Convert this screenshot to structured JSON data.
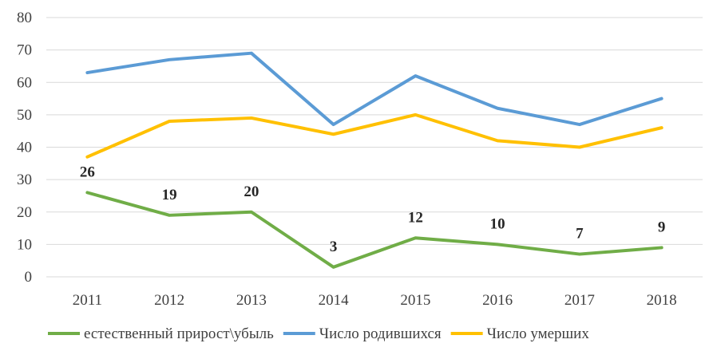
{
  "chart_data": {
    "type": "line",
    "categories": [
      "2011",
      "2012",
      "2013",
      "2014",
      "2015",
      "2016",
      "2017",
      "2018"
    ],
    "ylim": [
      0,
      80
    ],
    "yticks": [
      0,
      10,
      20,
      30,
      40,
      50,
      60,
      70,
      80
    ],
    "grid": true,
    "legend_position": "bottom",
    "series": [
      {
        "name": "естественный прирост\\убыль",
        "color": "#70ad47",
        "values": [
          26,
          19,
          20,
          3,
          12,
          10,
          7,
          9
        ],
        "data_labels": [
          "26",
          "19",
          "20",
          "3",
          "12",
          "10",
          "7",
          "9"
        ]
      },
      {
        "name": "Число родившихся",
        "color": "#5b9bd5",
        "values": [
          63,
          67,
          69,
          47,
          62,
          52,
          47,
          55
        ]
      },
      {
        "name": "Число умерших",
        "color": "#ffc000",
        "values": [
          37,
          48,
          49,
          44,
          50,
          42,
          40,
          46
        ]
      }
    ]
  }
}
